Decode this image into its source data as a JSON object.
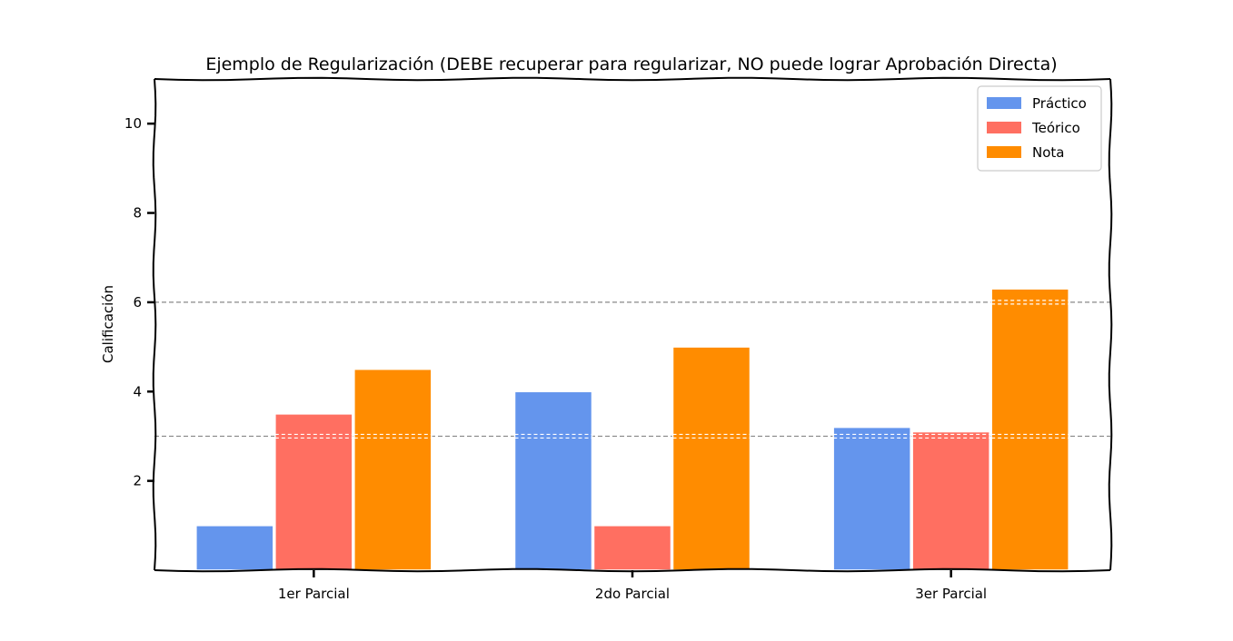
{
  "chart_data": {
    "type": "bar",
    "title": "Ejemplo de Regularización (DEBE recuperar para regularizar, NO puede lograr Aprobación Directa)",
    "xlabel": "",
    "ylabel": "Calificación",
    "categories": [
      "1er Parcial",
      "2do Parcial",
      "3er Parcial"
    ],
    "series": [
      {
        "name": "Práctico",
        "color": "#6495ED",
        "values": [
          1.0,
          4.0,
          3.2
        ]
      },
      {
        "name": "Teórico",
        "color": "#FF6F61",
        "values": [
          3.5,
          1.0,
          3.1
        ]
      },
      {
        "name": "Nota",
        "color": "#FF8C00",
        "values": [
          4.5,
          5.0,
          6.3
        ]
      }
    ],
    "ylim": [
      0,
      11
    ],
    "yticks": [
      2,
      4,
      6,
      8,
      10
    ],
    "reference_lines": [
      3,
      6
    ],
    "reference_line_color": "#888888",
    "legend_position": "top-right",
    "grid": false
  }
}
